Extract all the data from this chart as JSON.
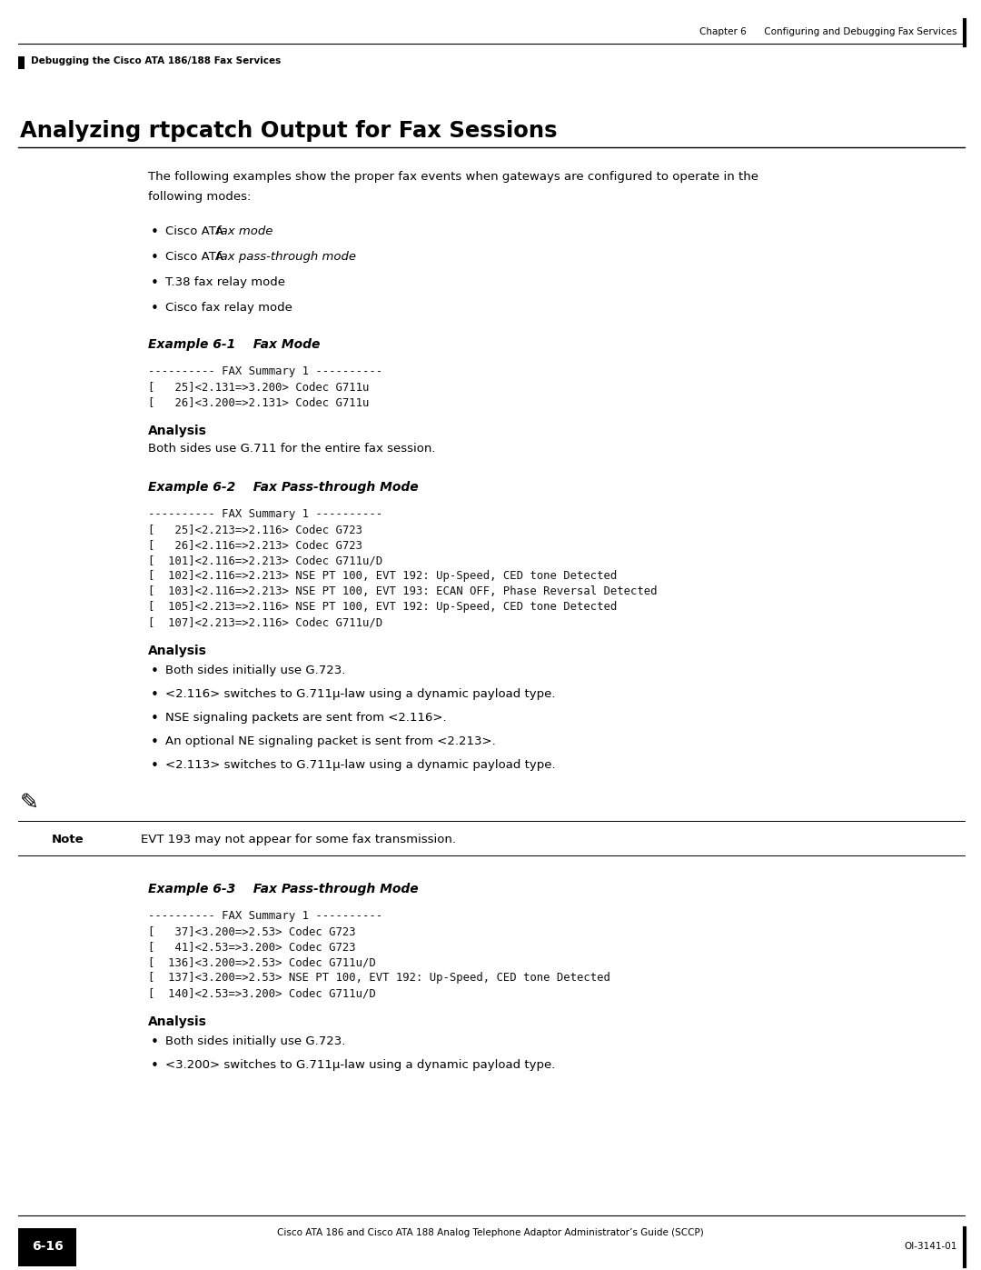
{
  "page_width": 10.8,
  "page_height": 13.97,
  "bg_color": "#ffffff",
  "header_chapter_text": "Chapter 6      Configuring and Debugging Fax Services",
  "header_left_text": "Debugging the Cisco ATA 186/188 Fax Services",
  "footer_left_text": "6-16",
  "footer_center_text": "Cisco ATA 186 and Cisco ATA 188 Analog Telephone Adaptor Administrator’s Guide (SCCP)",
  "footer_right_text": "OI-3141-01",
  "main_title": "Analyzing rtpcatch Output for Fax Sessions",
  "intro_line1": "The following examples show the proper fax events when gateways are configured to operate in the",
  "intro_line2": "following modes:",
  "bullet_items": [
    {
      "prefix": "Cisco ATA ",
      "italic": "fax mode"
    },
    {
      "prefix": "Cisco ATA ",
      "italic": "fax pass-through mode"
    },
    {
      "prefix": "T.38 fax relay mode",
      "italic": ""
    },
    {
      "prefix": "Cisco fax relay mode",
      "italic": ""
    }
  ],
  "example1_label": "Example 6-1    Fax Mode",
  "example1_code": [
    "---------- FAX Summary 1 ----------",
    "[   25]<2.131=>3.200> Codec G711u",
    "[   26]<3.200=>2.131> Codec G711u"
  ],
  "analysis1_title": "Analysis",
  "analysis1_text": "Both sides use G.711 for the entire fax session.",
  "example2_label": "Example 6-2    Fax Pass-through Mode",
  "example2_code": [
    "---------- FAX Summary 1 ----------",
    "[   25]<2.213=>2.116> Codec G723",
    "[   26]<2.116=>2.213> Codec G723",
    "[  101]<2.116=>2.213> Codec G711u/D",
    "[  102]<2.116=>2.213> NSE PT 100, EVT 192: Up-Speed, CED tone Detected",
    "[  103]<2.116=>2.213> NSE PT 100, EVT 193: ECAN OFF, Phase Reversal Detected",
    "[  105]<2.213=>2.116> NSE PT 100, EVT 192: Up-Speed, CED tone Detected",
    "[  107]<2.213=>2.116> Codec G711u/D"
  ],
  "analysis2_title": "Analysis",
  "analysis2_bullets": [
    "Both sides initially use G.723.",
    "<2.116> switches to G.711μ-law using a dynamic payload type.",
    "NSE signaling packets are sent from <2.116>.",
    "An optional NE signaling packet is sent from <2.213>.",
    "<2.113> switches to G.711μ-law using a dynamic payload type."
  ],
  "note_label": "Note",
  "note_text": "EVT 193 may not appear for some fax transmission.",
  "example3_label": "Example 6-3    Fax Pass-through Mode",
  "example3_code": [
    "---------- FAX Summary 1 ----------",
    "[   37]<3.200=>2.53> Codec G723",
    "[   41]<2.53=>3.200> Codec G723",
    "[  136]<3.200=>2.53> Codec G711u/D",
    "[  137]<3.200=>2.53> NSE PT 100, EVT 192: Up-Speed, CED tone Detected",
    "[  140]<2.53=>3.200> Codec G711u/D"
  ],
  "analysis3_title": "Analysis",
  "analysis3_bullets": [
    "Both sides initially use G.723.",
    "<3.200> switches to G.711μ-law using a dynamic payload type."
  ]
}
